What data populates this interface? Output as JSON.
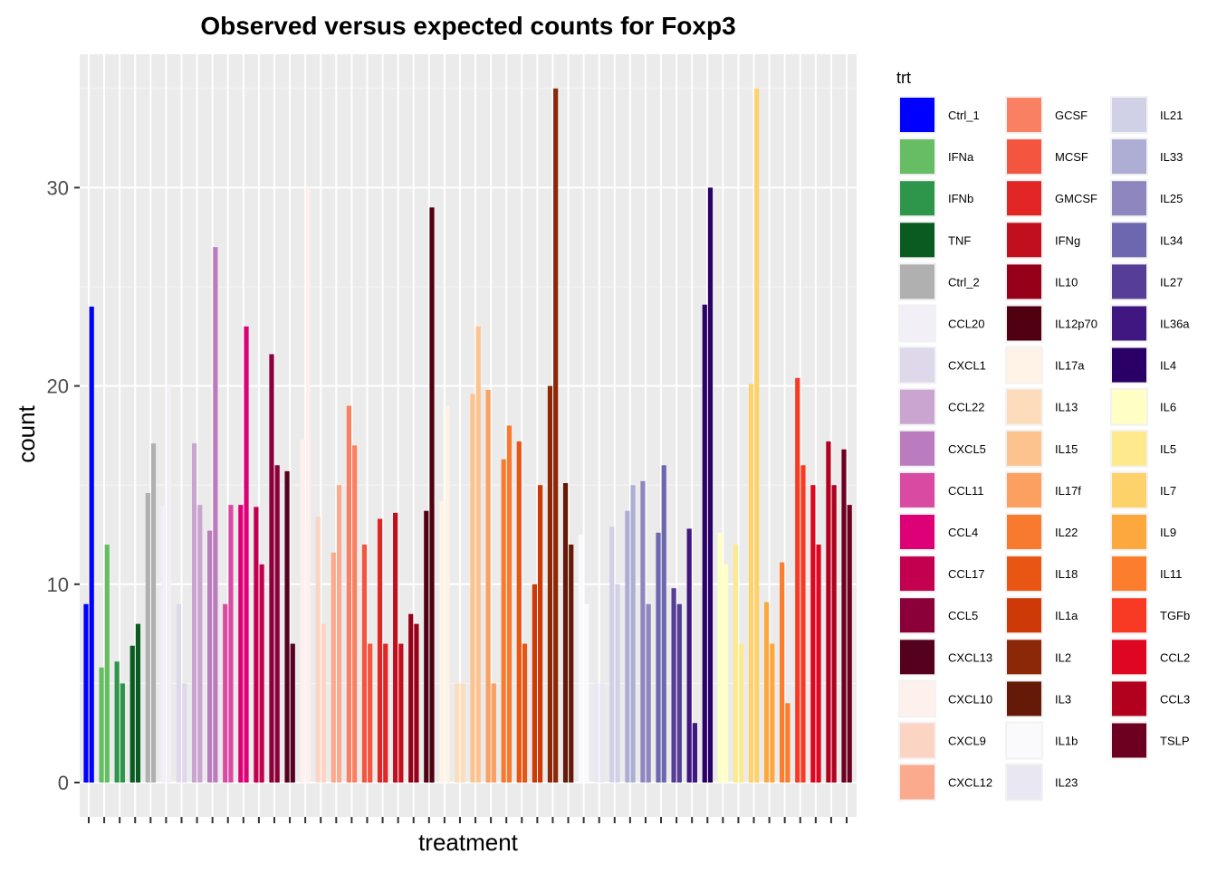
{
  "chart_data": {
    "type": "bar",
    "title": "Observed versus expected counts for Foxp3",
    "xlabel": "treatment",
    "ylabel": "count",
    "ylim": [
      0,
      35
    ],
    "yticks": [
      0,
      10,
      20,
      30
    ],
    "grid": true,
    "legend": {
      "title": "trt",
      "placement": "right",
      "columns": 3,
      "entries": [
        {
          "name": "Ctrl_1",
          "color": "#0000FF"
        },
        {
          "name": "IFNa",
          "color": "#66BD63"
        },
        {
          "name": "IFNb",
          "color": "#2E964A"
        },
        {
          "name": "TNF",
          "color": "#0A5B22"
        },
        {
          "name": "Ctrl_2",
          "color": "#B0B0B0"
        },
        {
          "name": "CCL20",
          "color": "#F2EFF6"
        },
        {
          "name": "CXCL1",
          "color": "#DFD8EB"
        },
        {
          "name": "CCL22",
          "color": "#C9A5D0"
        },
        {
          "name": "CXCL5",
          "color": "#BA7CBE"
        },
        {
          "name": "CCL11",
          "color": "#D94AA2"
        },
        {
          "name": "CCL4",
          "color": "#DE0077"
        },
        {
          "name": "CCL17",
          "color": "#C2004F"
        },
        {
          "name": "CCL5",
          "color": "#8B0039"
        },
        {
          "name": "CXCL13",
          "color": "#55001E"
        },
        {
          "name": "CXCL10",
          "color": "#FEF0EC"
        },
        {
          "name": "CXCL9",
          "color": "#FCD4C4"
        },
        {
          "name": "CXCL12",
          "color": "#FBAA8D"
        },
        {
          "name": "GCSF",
          "color": "#FA8063"
        },
        {
          "name": "MCSF",
          "color": "#F4553E"
        },
        {
          "name": "GMCSF",
          "color": "#E12625"
        },
        {
          "name": "IFNg",
          "color": "#C20F1D"
        },
        {
          "name": "IL10",
          "color": "#960018"
        },
        {
          "name": "IL12p70",
          "color": "#500010"
        },
        {
          "name": "IL17a",
          "color": "#FEF3E6"
        },
        {
          "name": "IL13",
          "color": "#FDDCBC"
        },
        {
          "name": "IL15",
          "color": "#FDC38F"
        },
        {
          "name": "IL17f",
          "color": "#FBA061"
        },
        {
          "name": "IL22",
          "color": "#F87A2E"
        },
        {
          "name": "IL18",
          "color": "#E95512"
        },
        {
          "name": "IL1a",
          "color": "#CD3A07"
        },
        {
          "name": "IL2",
          "color": "#8C2808"
        },
        {
          "name": "IL3",
          "color": "#651A08"
        },
        {
          "name": "IL1b",
          "color": "#FAFAFC"
        },
        {
          "name": "IL23",
          "color": "#E9E8F2"
        },
        {
          "name": "IL21",
          "color": "#D0D0E6"
        },
        {
          "name": "IL33",
          "color": "#AEAED4"
        },
        {
          "name": "IL25",
          "color": "#8E87BF"
        },
        {
          "name": "IL34",
          "color": "#6D67AF"
        },
        {
          "name": "IL27",
          "color": "#563D96"
        },
        {
          "name": "IL36a",
          "color": "#401780"
        },
        {
          "name": "IL4",
          "color": "#2A0066"
        },
        {
          "name": "IL6",
          "color": "#FFFEC4"
        },
        {
          "name": "IL5",
          "color": "#FEEA8D"
        },
        {
          "name": "IL7",
          "color": "#FED26A"
        },
        {
          "name": "IL9",
          "color": "#FDA83D"
        },
        {
          "name": "IL11",
          "color": "#FB7D2D"
        },
        {
          "name": "TGFb",
          "color": "#F83A24"
        },
        {
          "name": "CCL2",
          "color": "#DF0621"
        },
        {
          "name": "CCL3",
          "color": "#B2001F"
        },
        {
          "name": "TSLP",
          "color": "#6D0020"
        }
      ]
    },
    "series_note": "",
    "bars": [
      {
        "trt": "Ctrl_1",
        "values": [
          9,
          24
        ]
      },
      {
        "trt": "IFNa",
        "values": [
          5.8,
          12
        ]
      },
      {
        "trt": "IFNb",
        "values": [
          6.1,
          5
        ]
      },
      {
        "trt": "TNF",
        "values": [
          6.9,
          8
        ]
      },
      {
        "trt": "Ctrl_2",
        "values": [
          14.6,
          17.1
        ]
      },
      {
        "trt": "CCL20",
        "values": [
          14,
          20
        ]
      },
      {
        "trt": "CXCL1",
        "values": [
          9,
          5
        ]
      },
      {
        "trt": "CCL22",
        "values": [
          17.1,
          14
        ]
      },
      {
        "trt": "CXCL5",
        "values": [
          12.7,
          27
        ]
      },
      {
        "trt": "CCL11",
        "values": [
          9,
          14
        ]
      },
      {
        "trt": "CCL4",
        "values": [
          14,
          23
        ]
      },
      {
        "trt": "CCL17",
        "values": [
          13.9,
          11
        ]
      },
      {
        "trt": "CCL5",
        "values": [
          21.6,
          16
        ]
      },
      {
        "trt": "CXCL13",
        "values": [
          15.7,
          7
        ]
      },
      {
        "trt": "CXCL10",
        "values": [
          17.3,
          30
        ]
      },
      {
        "trt": "CXCL9",
        "values": [
          13.4,
          8
        ]
      },
      {
        "trt": "CXCL12",
        "values": [
          11.6,
          15
        ]
      },
      {
        "trt": "GCSF",
        "values": [
          19,
          17
        ]
      },
      {
        "trt": "MCSF",
        "values": [
          12,
          7
        ]
      },
      {
        "trt": "GMCSF",
        "values": [
          13.3,
          7
        ]
      },
      {
        "trt": "IFNg",
        "values": [
          13.6,
          7
        ]
      },
      {
        "trt": "IL10",
        "values": [
          8.5,
          8
        ]
      },
      {
        "trt": "IL12p70",
        "values": [
          13.7,
          29
        ]
      },
      {
        "trt": "IL17a",
        "values": [
          14.2,
          19
        ]
      },
      {
        "trt": "IL13",
        "values": [
          5,
          5
        ]
      },
      {
        "trt": "IL15",
        "values": [
          19.6,
          23
        ]
      },
      {
        "trt": "IL17f",
        "values": [
          19.8,
          5
        ]
      },
      {
        "trt": "IL22",
        "values": [
          16.3,
          18
        ]
      },
      {
        "trt": "IL18",
        "values": [
          17.2,
          7
        ]
      },
      {
        "trt": "IL1a",
        "values": [
          10,
          15
        ]
      },
      {
        "trt": "IL2",
        "values": [
          20,
          35
        ]
      },
      {
        "trt": "IL3",
        "values": [
          15.1,
          12
        ]
      },
      {
        "trt": "IL1b",
        "values": [
          12.5,
          9
        ]
      },
      {
        "trt": "IL23",
        "values": [
          5,
          5
        ]
      },
      {
        "trt": "IL21",
        "values": [
          12.9,
          10
        ]
      },
      {
        "trt": "IL33",
        "values": [
          13.7,
          15
        ]
      },
      {
        "trt": "IL25",
        "values": [
          15.2,
          9
        ]
      },
      {
        "trt": "IL34",
        "values": [
          12.6,
          16
        ]
      },
      {
        "trt": "IL27",
        "values": [
          9.8,
          9
        ]
      },
      {
        "trt": "IL36a",
        "values": [
          12.8,
          3
        ]
      },
      {
        "trt": "IL4",
        "values": [
          24.1,
          30
        ]
      },
      {
        "trt": "IL6",
        "values": [
          12.6,
          11
        ]
      },
      {
        "trt": "IL5",
        "values": [
          12,
          7
        ]
      },
      {
        "trt": "IL7",
        "values": [
          20.1,
          35
        ]
      },
      {
        "trt": "IL9",
        "values": [
          9.1,
          7
        ]
      },
      {
        "trt": "IL11",
        "values": [
          11.1,
          4
        ]
      },
      {
        "trt": "TGFb",
        "values": [
          20.4,
          16
        ]
      },
      {
        "trt": "CCL2",
        "values": [
          15,
          12
        ]
      },
      {
        "trt": "CCL3",
        "values": [
          17.2,
          15
        ]
      },
      {
        "trt": "TSLP",
        "values": [
          16.8,
          14
        ]
      }
    ]
  }
}
